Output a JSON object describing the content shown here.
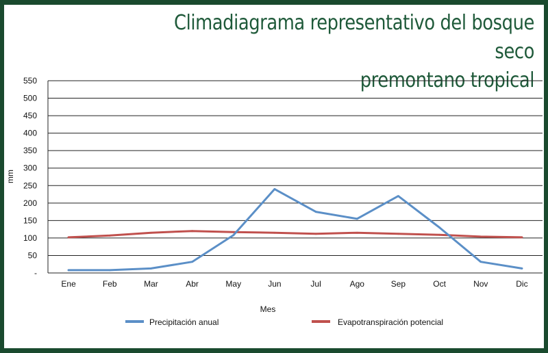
{
  "title_lines": [
    "Climadiagrama representativo del bosque seco",
    "premontano tropical"
  ],
  "colors": {
    "background": "#1a4a2e",
    "title": "#1f5a3a",
    "precipitation": "#5b8fc7",
    "evapotranspiration": "#c0504d",
    "grid": "#222222"
  },
  "chart_data": {
    "type": "line",
    "title": "Climadiagrama representativo del bosque seco premontano tropical",
    "xlabel": "Mes",
    "ylabel": "mm",
    "ylim": [
      0,
      550
    ],
    "yticks": [
      "-",
      "50",
      "100",
      "150",
      "200",
      "250",
      "300",
      "350",
      "400",
      "450",
      "500",
      "550"
    ],
    "categories": [
      "Ene",
      "Feb",
      "Mar",
      "Abr",
      "May",
      "Jun",
      "Jul",
      "Ago",
      "Sep",
      "Oct",
      "Nov",
      "Dic"
    ],
    "grid": true,
    "legend_position": "bottom",
    "series": [
      {
        "name": "Precipitación anual",
        "color": "#5b8fc7",
        "values": [
          8,
          8,
          13,
          32,
          108,
          240,
          175,
          155,
          220,
          130,
          32,
          13
        ]
      },
      {
        "name": "Evapotranspiración potencial",
        "color": "#c0504d",
        "values": [
          102,
          107,
          115,
          120,
          117,
          115,
          112,
          115,
          112,
          109,
          104,
          102
        ]
      }
    ]
  }
}
